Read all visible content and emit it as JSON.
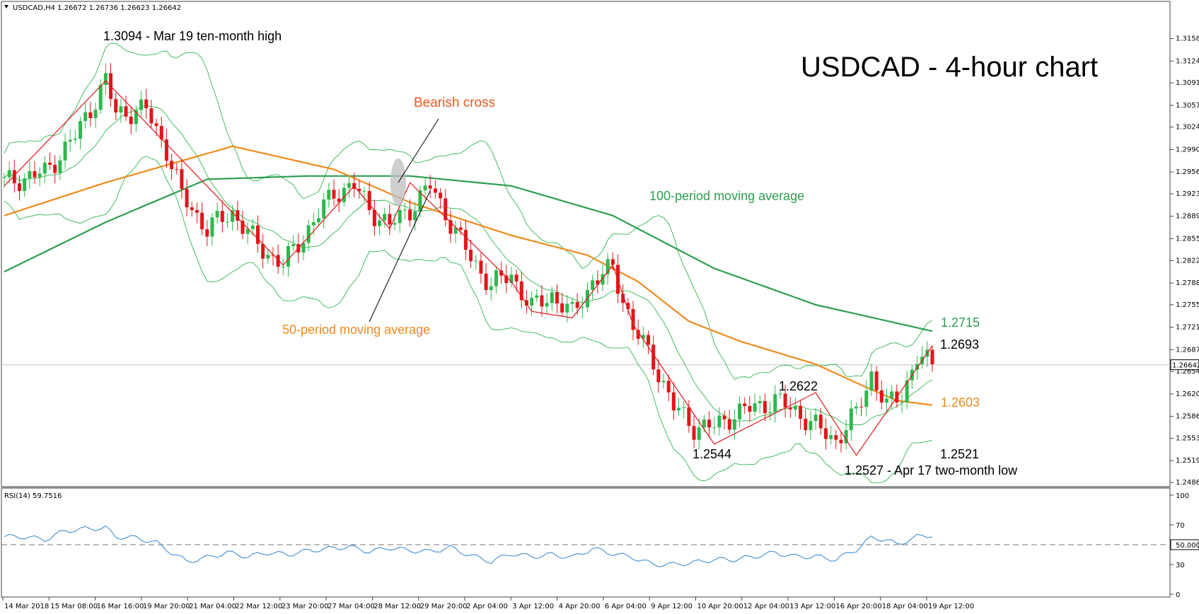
{
  "chart_data": {
    "type": "candlestick",
    "symbol_header": "USDCAD,H4  1.26672 1.26736 1.26623 1.26642",
    "title": "USDCAD - 4-hour chart",
    "ylim": [
      1.2486,
      1.3195
    ],
    "y_ticks": [
      "1.31580",
      "1.31240",
      "1.30910",
      "1.30570",
      "1.30240",
      "1.29900",
      "1.29560",
      "1.29230",
      "1.28890",
      "1.28550",
      "1.28220",
      "1.27880",
      "1.27550",
      "1.27210",
      "1.26870",
      "1.26540",
      "1.26200",
      "1.25860",
      "1.25530",
      "1.25190",
      "1.24860"
    ],
    "current_price_label": "1.26642",
    "current_price": 1.26642,
    "x_ticks": [
      "14 Mar 2018",
      "15 Mar 08:00",
      "16 Mar 16:00",
      "19 Mar 20:00",
      "21 Mar 04:00",
      "22 Mar 12:00",
      "23 Mar 20:00",
      "27 Mar 04:00",
      "28 Mar 12:00",
      "29 Mar 20:00",
      "2 Apr 04:00",
      "3 Apr 12:00",
      "4 Apr 20:00",
      "6 Apr 04:00",
      "9 Apr 12:00",
      "10 Apr 20:00",
      "12 Apr 04:00",
      "13 Apr 12:00",
      "16 Apr 20:00",
      "18 Apr 04:00",
      "19 Apr 12:00"
    ],
    "close_path": [
      [
        0,
        1.294
      ],
      [
        8,
        1.2955
      ],
      [
        14,
        1.301
      ],
      [
        20,
        1.3094
      ],
      [
        22,
        1.3045
      ],
      [
        28,
        1.305
      ],
      [
        32,
        1.299
      ],
      [
        35,
        1.292
      ],
      [
        40,
        1.287
      ],
      [
        45,
        1.2895
      ],
      [
        50,
        1.2845
      ],
      [
        55,
        1.2815
      ],
      [
        60,
        1.287
      ],
      [
        65,
        1.2925
      ],
      [
        69,
        1.2935
      ],
      [
        72,
        1.29
      ],
      [
        76,
        1.2875
      ],
      [
        80,
        1.29
      ],
      [
        84,
        1.2935
      ],
      [
        88,
        1.288
      ],
      [
        92,
        1.2825
      ],
      [
        96,
        1.2785
      ],
      [
        100,
        1.28
      ],
      [
        104,
        1.275
      ],
      [
        108,
        1.277
      ],
      [
        112,
        1.274
      ],
      [
        116,
        1.279
      ],
      [
        120,
        1.281
      ],
      [
        124,
        1.272
      ],
      [
        128,
        1.267
      ],
      [
        132,
        1.26
      ],
      [
        136,
        1.257
      ],
      [
        140,
        1.257
      ],
      [
        144,
        1.259
      ],
      [
        148,
        1.26
      ],
      [
        152,
        1.261
      ],
      [
        156,
        1.2595
      ],
      [
        160,
        1.257
      ],
      [
        164,
        1.255
      ],
      [
        168,
        1.259
      ],
      [
        171,
        1.265
      ],
      [
        174,
        1.26
      ],
      [
        177,
        1.262
      ],
      [
        180,
        1.2675
      ],
      [
        183,
        1.2664
      ]
    ],
    "series": [
      {
        "name": "100-period moving average",
        "label_value": "1.2715",
        "color": "#2e9e50",
        "values": [
          [
            0,
            1.2805
          ],
          [
            20,
            1.288
          ],
          [
            40,
            1.2945
          ],
          [
            60,
            1.295
          ],
          [
            80,
            1.295
          ],
          [
            100,
            1.2935
          ],
          [
            120,
            1.289
          ],
          [
            140,
            1.281
          ],
          [
            160,
            1.2755
          ],
          [
            183,
            1.2715
          ]
        ]
      },
      {
        "name": "50-period moving average",
        "label_value": "1.2603",
        "color": "#f08a1c",
        "values": [
          [
            0,
            1.289
          ],
          [
            20,
            1.294
          ],
          [
            45,
            1.2995
          ],
          [
            65,
            1.296
          ],
          [
            80,
            1.291
          ],
          [
            100,
            1.286
          ],
          [
            115,
            1.283
          ],
          [
            125,
            1.279
          ],
          [
            135,
            1.273
          ],
          [
            145,
            1.27
          ],
          [
            160,
            1.2665
          ],
          [
            170,
            1.263
          ],
          [
            176,
            1.261
          ],
          [
            183,
            1.2603
          ]
        ]
      }
    ],
    "annotations": {
      "high": "1.3094 - Mar 19 ten-month high",
      "bearish_cross": "Bearish cross",
      "ma100_label": "100-period moving average",
      "ma50_label": "50-period moving average",
      "l1": "1.2544",
      "l2": "1.2622",
      "low": "1.2527 - Apr 17 two-month low",
      "l3": "1.2521",
      "l4": "1.2693",
      "ma100_value": "1.2715",
      "ma50_value": "1.2603"
    },
    "rsi": {
      "header": "RSI(14) 59.7516",
      "ylim": [
        0,
        100
      ],
      "y_ticks": [
        "100",
        "70",
        "50.0000",
        "30",
        "0"
      ],
      "level": 50,
      "values": [
        [
          0,
          58
        ],
        [
          4,
          58
        ],
        [
          8,
          55
        ],
        [
          12,
          64
        ],
        [
          16,
          66
        ],
        [
          20,
          67
        ],
        [
          22,
          58
        ],
        [
          26,
          57
        ],
        [
          30,
          52
        ],
        [
          33,
          42
        ],
        [
          36,
          33
        ],
        [
          40,
          37
        ],
        [
          44,
          42
        ],
        [
          48,
          38
        ],
        [
          52,
          42
        ],
        [
          56,
          40
        ],
        [
          60,
          44
        ],
        [
          64,
          46
        ],
        [
          68,
          48
        ],
        [
          72,
          43
        ],
        [
          76,
          47
        ],
        [
          80,
          44
        ],
        [
          84,
          43
        ],
        [
          88,
          47
        ],
        [
          92,
          39
        ],
        [
          96,
          33
        ],
        [
          100,
          41
        ],
        [
          104,
          38
        ],
        [
          108,
          40
        ],
        [
          112,
          37
        ],
        [
          116,
          46
        ],
        [
          120,
          41
        ],
        [
          124,
          37
        ],
        [
          128,
          30
        ],
        [
          132,
          30
        ],
        [
          136,
          32
        ],
        [
          140,
          35
        ],
        [
          144,
          35
        ],
        [
          148,
          38
        ],
        [
          152,
          42
        ],
        [
          156,
          38
        ],
        [
          160,
          38
        ],
        [
          164,
          35
        ],
        [
          168,
          45
        ],
        [
          171,
          57
        ],
        [
          174,
          55
        ],
        [
          176,
          50
        ],
        [
          180,
          58
        ],
        [
          183,
          59.75
        ]
      ]
    },
    "colors": {
      "up": "#2db84d",
      "down": "#e0161b",
      "bollinger": "#2db84d",
      "rsi": "#3d8fd6",
      "zigzag": "#e0161b"
    }
  }
}
